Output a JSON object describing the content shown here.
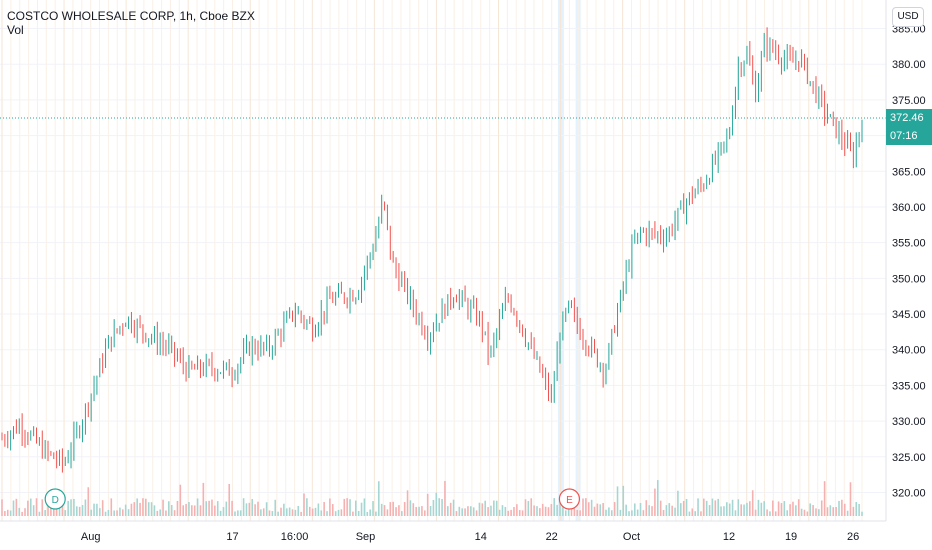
{
  "header": {
    "title": "COSTCO WHOLESALE CORP, 1h, Cboe BZX",
    "volume_label": "Vol"
  },
  "currency_button": "USD",
  "last_price": {
    "value": 372.46,
    "label": "372.46",
    "countdown": "07:16"
  },
  "colors": {
    "up": "#26a69a",
    "down": "#ef5350",
    "grid": "#f3e3d0",
    "highlight": "#e3f2fd"
  },
  "event_markers": [
    {
      "label": "D",
      "x_date": "Jul 28",
      "color": "#26a69a"
    },
    {
      "label": "E",
      "x_date": "Sep 24",
      "color": "#ef5350"
    }
  ],
  "chart_data": {
    "type": "candlestick",
    "title": "COSTCO WHOLESALE CORP, 1h, Cboe BZX",
    "y_axis": {
      "min": 316,
      "max": 389,
      "ticks": [
        320,
        325,
        330,
        335,
        340,
        345,
        350,
        355,
        360,
        365,
        370,
        375,
        380,
        385
      ],
      "tick_labels": [
        "320.00",
        "325.00",
        "330.00",
        "335.00",
        "340.00",
        "345.00",
        "350.00",
        "355.00",
        "360.00",
        "365.00",
        "370.00",
        "375.00",
        "380.00",
        "385.00"
      ]
    },
    "x_axis": {
      "tick_labels": [
        "Aug",
        "17",
        "16:00",
        "Sep",
        "14",
        "22",
        "Oct",
        "12",
        "19",
        "26"
      ]
    },
    "grid": true,
    "series_anchors": [
      {
        "date": "Jul 22",
        "price": 327.5
      },
      {
        "date": "Jul 24",
        "price": 329.5
      },
      {
        "date": "Jul 27",
        "price": 325.5
      },
      {
        "date": "Jul 29",
        "price": 324.0
      },
      {
        "date": "Jul 31",
        "price": 330.0
      },
      {
        "date": "Aug 3",
        "price": 341.0
      },
      {
        "date": "Aug 5",
        "price": 344.5
      },
      {
        "date": "Aug 7",
        "price": 342.5
      },
      {
        "date": "Aug 10",
        "price": 340.0
      },
      {
        "date": "Aug 12",
        "price": 337.0
      },
      {
        "date": "Aug 14",
        "price": 337.5
      },
      {
        "date": "Aug 17",
        "price": 337.0
      },
      {
        "date": "Aug 19",
        "price": 340.5
      },
      {
        "date": "Aug 21",
        "price": 340.0
      },
      {
        "date": "Aug 24",
        "price": 345.5
      },
      {
        "date": "Aug 26",
        "price": 343.0
      },
      {
        "date": "Aug 28",
        "price": 347.0
      },
      {
        "date": "Aug 31",
        "price": 348.0
      },
      {
        "date": "Sep 2",
        "price": 355.0
      },
      {
        "date": "Sep 3",
        "price": 361.0
      },
      {
        "date": "Sep 4",
        "price": 352.0
      },
      {
        "date": "Sep 8",
        "price": 342.0
      },
      {
        "date": "Sep 10",
        "price": 346.0
      },
      {
        "date": "Sep 11",
        "price": 348.0
      },
      {
        "date": "Sep 14",
        "price": 344.0
      },
      {
        "date": "Sep 15",
        "price": 339.0
      },
      {
        "date": "Sep 17",
        "price": 347.5
      },
      {
        "date": "Sep 18",
        "price": 345.0
      },
      {
        "date": "Sep 21",
        "price": 336.0
      },
      {
        "date": "Sep 22",
        "price": 333.0
      },
      {
        "date": "Sep 23",
        "price": 343.0
      },
      {
        "date": "Sep 24",
        "price": 346.0
      },
      {
        "date": "Sep 25",
        "price": 343.0
      },
      {
        "date": "Sep 28",
        "price": 337.0
      },
      {
        "date": "Sep 29",
        "price": 343.0
      },
      {
        "date": "Oct 1",
        "price": 354.0
      },
      {
        "date": "Oct 2",
        "price": 356.5
      },
      {
        "date": "Oct 5",
        "price": 356.0
      },
      {
        "date": "Oct 7",
        "price": 360.5
      },
      {
        "date": "Oct 8",
        "price": 362.0
      },
      {
        "date": "Oct 9",
        "price": 363.0
      },
      {
        "date": "Oct 12",
        "price": 370.0
      },
      {
        "date": "Oct 13",
        "price": 379.5
      },
      {
        "date": "Oct 14",
        "price": 381.5
      },
      {
        "date": "Oct 15",
        "price": 376.0
      },
      {
        "date": "Oct 16",
        "price": 383.0
      },
      {
        "date": "Oct 19",
        "price": 380.0
      },
      {
        "date": "Oct 20",
        "price": 381.0
      },
      {
        "date": "Oct 21",
        "price": 378.0
      },
      {
        "date": "Oct 22",
        "price": 375.5
      },
      {
        "date": "Oct 23",
        "price": 373.0
      },
      {
        "date": "Oct 26",
        "price": 367.0
      },
      {
        "date": "Oct 27",
        "price": 372.46
      }
    ]
  }
}
